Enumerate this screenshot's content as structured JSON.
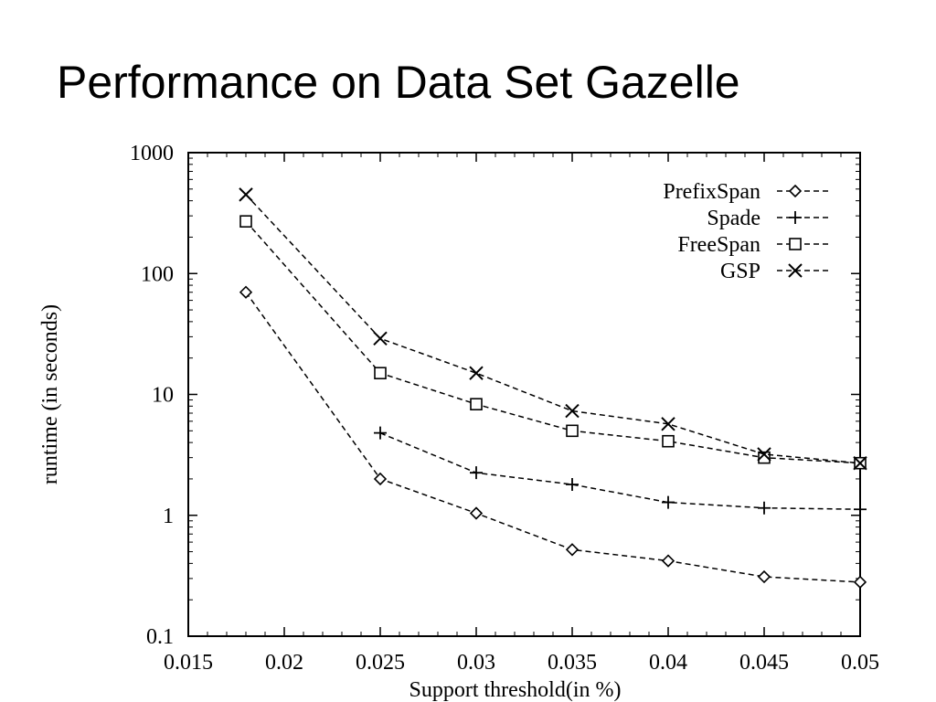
{
  "slide": {
    "title": "Performance on Data Set Gazelle"
  },
  "chart_data": {
    "type": "line",
    "title": "",
    "xlabel": "Support threshold(in %)",
    "ylabel": "runtime (in seconds)",
    "xlim": [
      0.015,
      0.05
    ],
    "ylim": [
      0.1,
      1000
    ],
    "yscale": "log",
    "x_ticks": [
      "0.015",
      "0.02",
      "0.025",
      "0.03",
      "0.035",
      "0.04",
      "0.045",
      "0.05"
    ],
    "y_ticks": [
      "0.1",
      "1",
      "10",
      "100",
      "1000"
    ],
    "grid": false,
    "legend_position": "top-right",
    "series": [
      {
        "name": "PrefixSpan",
        "marker": "diamond",
        "line_style": "dashed",
        "x": [
          0.018,
          0.025,
          0.03,
          0.035,
          0.04,
          0.045,
          0.05
        ],
        "y": [
          70,
          2,
          1.04,
          0.52,
          0.42,
          0.31,
          0.28
        ]
      },
      {
        "name": "Spade",
        "marker": "plus",
        "line_style": "dashed",
        "x": [
          0.025,
          0.03,
          0.035,
          0.04,
          0.045,
          0.05
        ],
        "y": [
          4.8,
          2.25,
          1.8,
          1.28,
          1.15,
          1.12
        ]
      },
      {
        "name": "FreeSpan",
        "marker": "square",
        "line_style": "dashed",
        "x": [
          0.018,
          0.025,
          0.03,
          0.035,
          0.04,
          0.045,
          0.05
        ],
        "y": [
          270,
          15,
          8.3,
          5,
          4.1,
          3,
          2.7
        ]
      },
      {
        "name": "GSP",
        "marker": "cross",
        "line_style": "dashed",
        "x": [
          0.018,
          0.025,
          0.03,
          0.035,
          0.04,
          0.045,
          0.05
        ],
        "y": [
          450,
          29,
          15,
          7.3,
          5.7,
          3.2,
          2.7
        ]
      }
    ]
  }
}
